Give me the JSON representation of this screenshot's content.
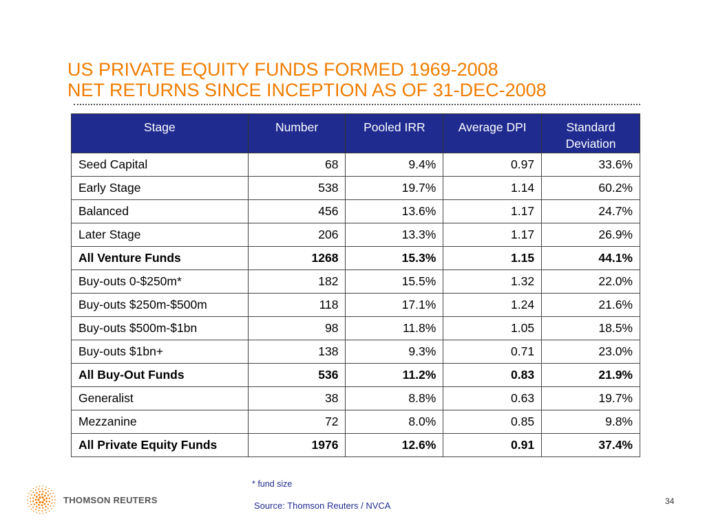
{
  "title": {
    "line1": "US PRIVATE EQUITY FUNDS FORMED 1969-2008",
    "line2": "NET RETURNS SINCE INCEPTION AS OF 31-DEC-2008"
  },
  "table": {
    "headers": [
      "Stage",
      "Number",
      "Pooled IRR",
      "Average DPI",
      "Standard\nDeviation"
    ],
    "rows": [
      {
        "stage": "Seed Capital",
        "number": "68",
        "irr": "9.4%",
        "dpi": "0.97",
        "sd": "33.6%",
        "bold": false
      },
      {
        "stage": "Early Stage",
        "number": "538",
        "irr": "19.7%",
        "dpi": "1.14",
        "sd": "60.2%",
        "bold": false
      },
      {
        "stage": "Balanced",
        "number": "456",
        "irr": "13.6%",
        "dpi": "1.17",
        "sd": "24.7%",
        "bold": false
      },
      {
        "stage": "Later Stage",
        "number": "206",
        "irr": "13.3%",
        "dpi": "1.17",
        "sd": "26.9%",
        "bold": false
      },
      {
        "stage": "All Venture Funds",
        "number": "1268",
        "irr": "15.3%",
        "dpi": "1.15",
        "sd": "44.1%",
        "bold": true
      },
      {
        "stage": "Buy-outs 0-$250m*",
        "number": "182",
        "irr": "15.5%",
        "dpi": "1.32",
        "sd": "22.0%",
        "bold": false
      },
      {
        "stage": "Buy-outs $250m-$500m",
        "number": "118",
        "irr": "17.1%",
        "dpi": "1.24",
        "sd": "21.6%",
        "bold": false
      },
      {
        "stage": "Buy-outs $500m-$1bn",
        "number": "98",
        "irr": "11.8%",
        "dpi": "1.05",
        "sd": "18.5%",
        "bold": false
      },
      {
        "stage": "Buy-outs $1bn+",
        "number": "138",
        "irr": "9.3%",
        "dpi": "0.71",
        "sd": "23.0%",
        "bold": false
      },
      {
        "stage": "All Buy-Out Funds",
        "number": "536",
        "irr": "11.2%",
        "dpi": "0.83",
        "sd": "21.9%",
        "bold": true
      },
      {
        "stage": "Generalist",
        "number": "38",
        "irr": "8.8%",
        "dpi": "0.63",
        "sd": "19.7%",
        "bold": false
      },
      {
        "stage": "Mezzanine",
        "number": "72",
        "irr": "8.0%",
        "dpi": "0.85",
        "sd": "9.8%",
        "bold": false
      },
      {
        "stage": "All Private Equity Funds",
        "number": "1976",
        "irr": "12.6%",
        "dpi": "0.91",
        "sd": "37.4%",
        "bold": true
      }
    ]
  },
  "footnote": "* fund size",
  "source": "Source: Thomson Reuters / NVCA",
  "page_number": "34",
  "logo": {
    "text": "THOMSON REUTERS",
    "icon": "thomson-reuters-dot-sphere-icon",
    "color": "#f07c00"
  },
  "colors": {
    "title": "#f07c00",
    "header_bg": "#1f2b8f",
    "footer_text": "#1f2b8f"
  }
}
